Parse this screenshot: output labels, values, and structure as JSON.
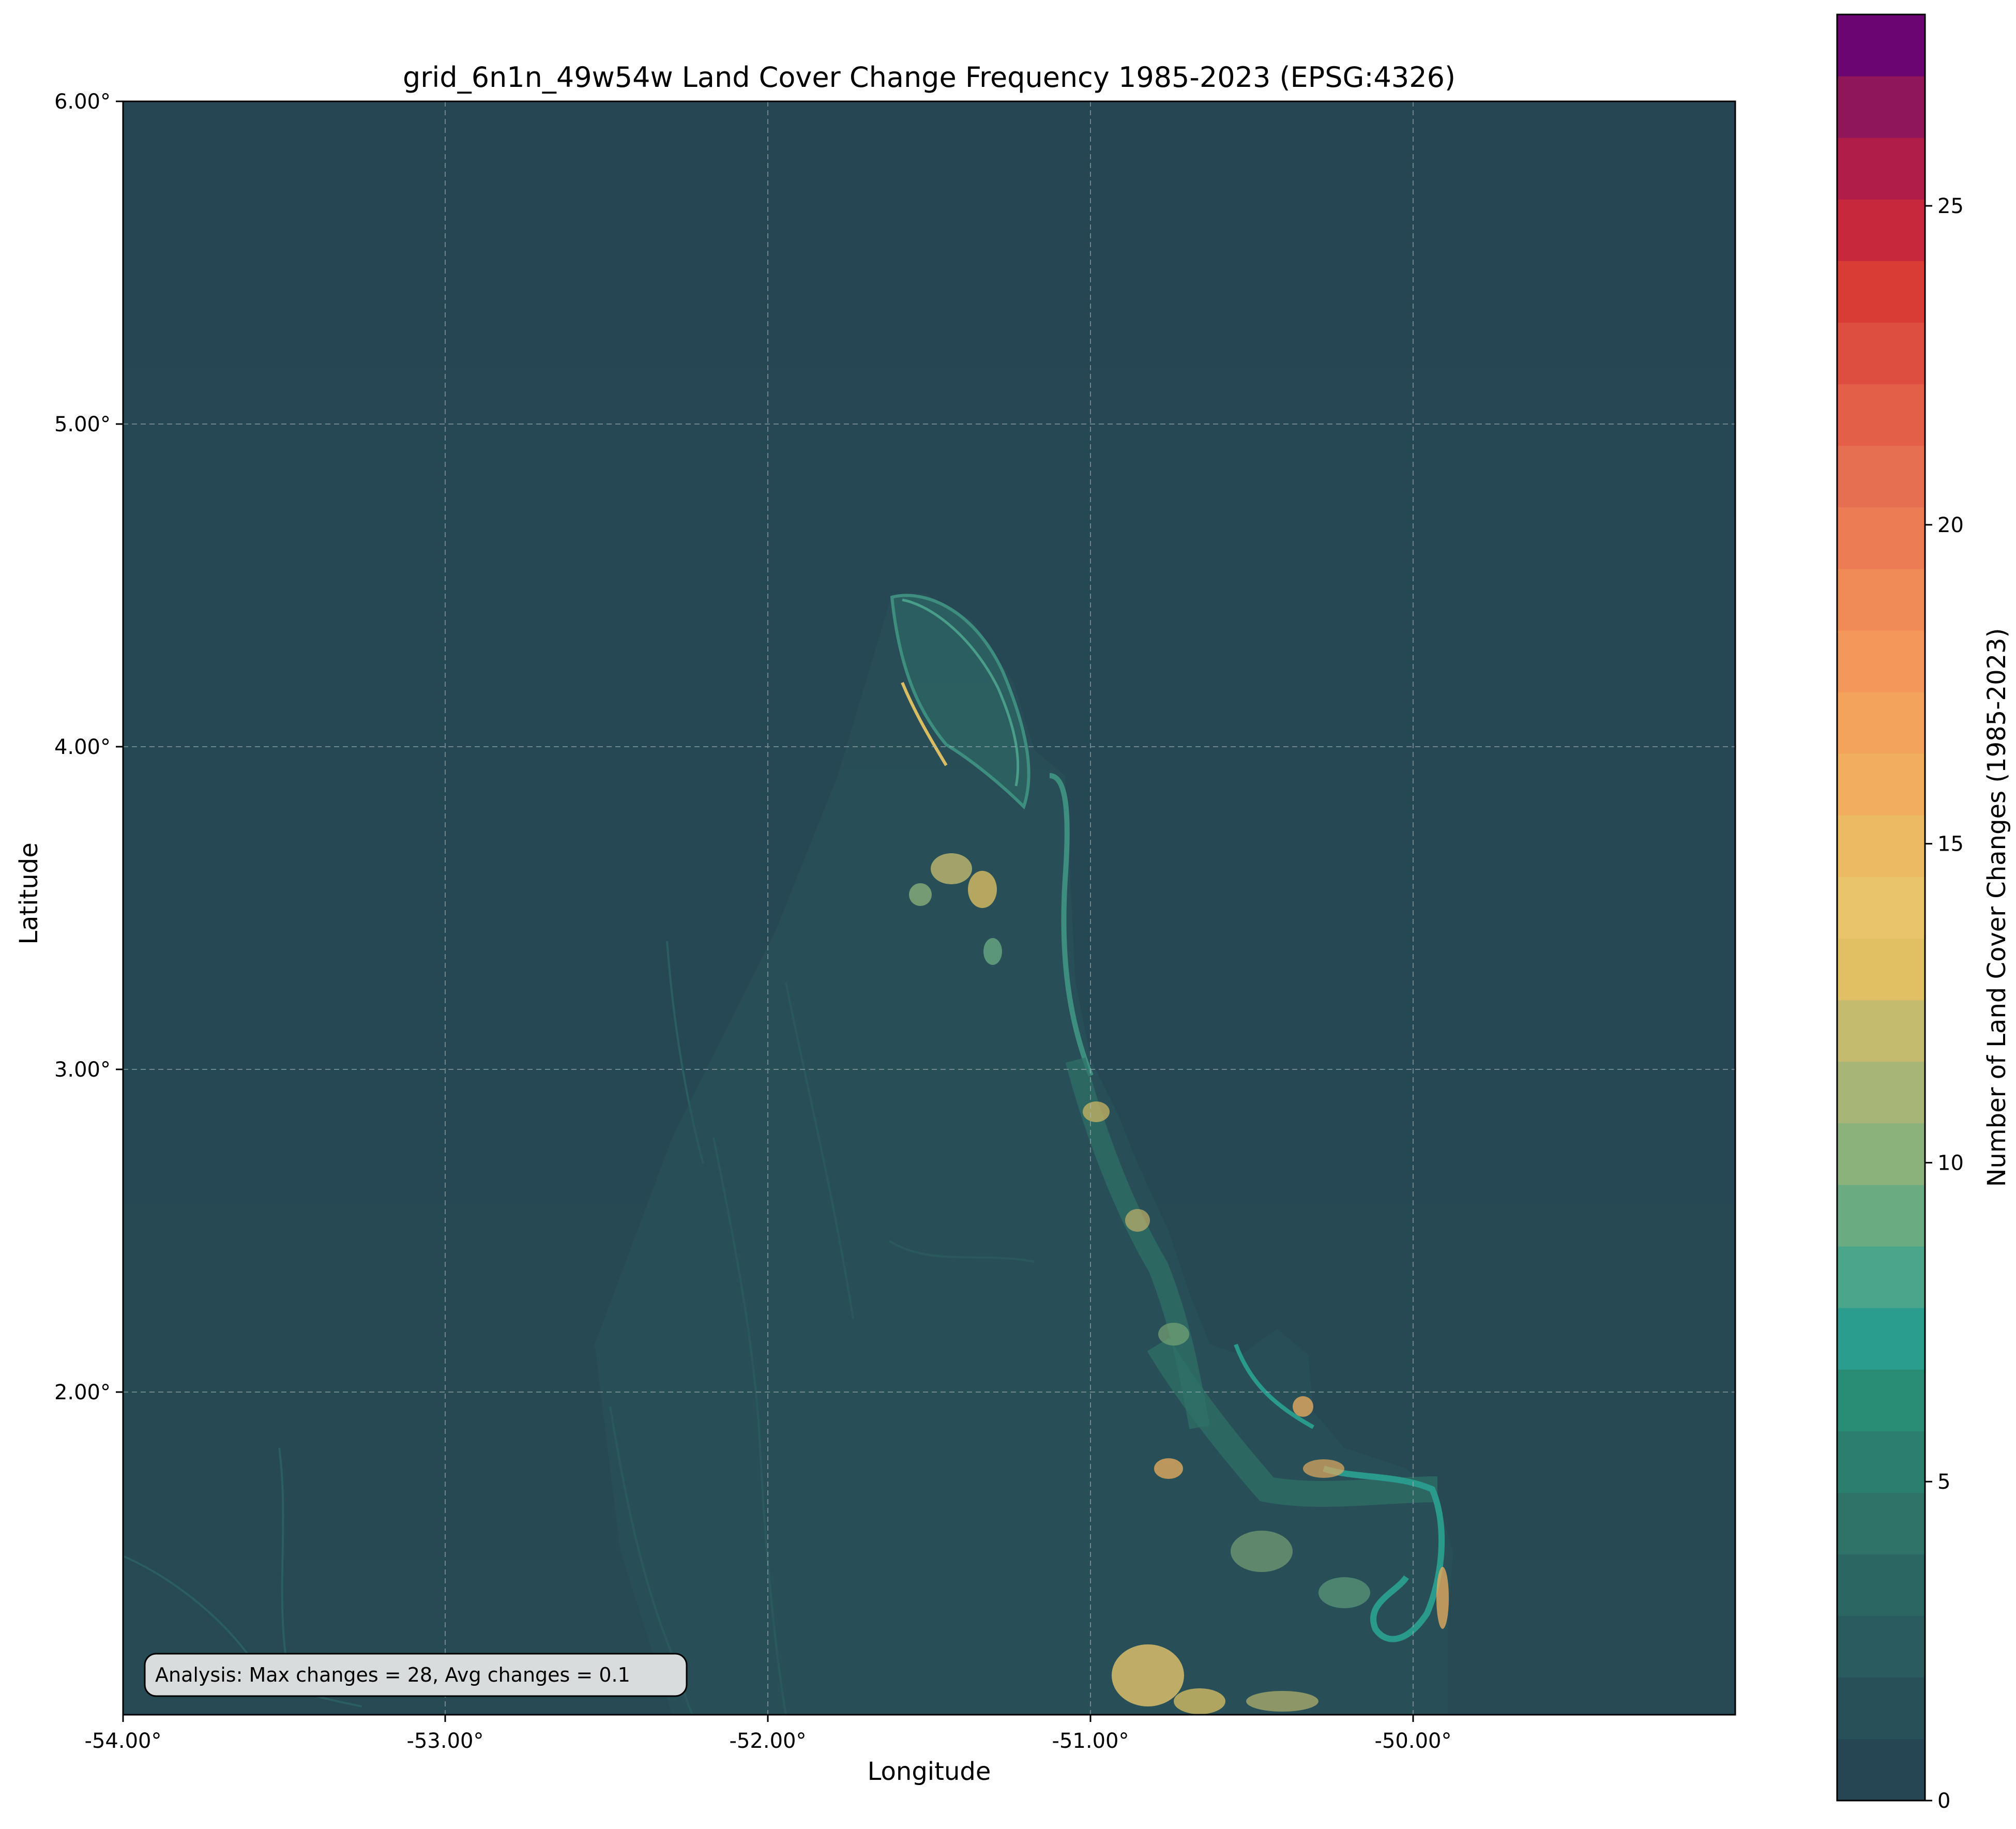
{
  "title": "grid_6n1n_49w54w Land Cover Change Frequency 1985-2023 (EPSG:4326)",
  "xlabel": "Longitude",
  "ylabel": "Latitude",
  "x_ticks": [
    "-54.00°",
    "-53.00°",
    "-52.00°",
    "-51.00°",
    "-50.00°"
  ],
  "y_ticks": [
    "6.00°",
    "5.00°",
    "4.00°",
    "3.00°",
    "2.00°"
  ],
  "colorbar": {
    "label": "Number of Land Cover Changes (1985-2023)",
    "ticks": [
      "0",
      "5",
      "10",
      "15",
      "20",
      "25"
    ],
    "range": [
      0,
      28
    ],
    "colors": [
      "#264653",
      "#285058",
      "#2a5b5e",
      "#2c6663",
      "#2e7268",
      "#2b7f6e",
      "#298c74",
      "#2a9d8f",
      "#4aa58a",
      "#6aab82",
      "#8bb27a",
      "#a7b576",
      "#c5bb6f",
      "#e0c062",
      "#e9c46a",
      "#edba64",
      "#f0ae5e",
      "#f3a35c",
      "#f4975a",
      "#f08b57",
      "#ec7c54",
      "#e76f51",
      "#e35f47",
      "#de4e3e",
      "#d93b35",
      "#c8283c",
      "#b01d48",
      "#8f1658",
      "#6a0572"
    ]
  },
  "annotation": "Analysis: Max changes = 28, Avg changes = 0.1",
  "map": {
    "extent": {
      "lon_min": -54,
      "lon_max": -49,
      "lat_min": 1,
      "lat_max": 6
    },
    "background_color": "#264653",
    "grid": true
  }
}
